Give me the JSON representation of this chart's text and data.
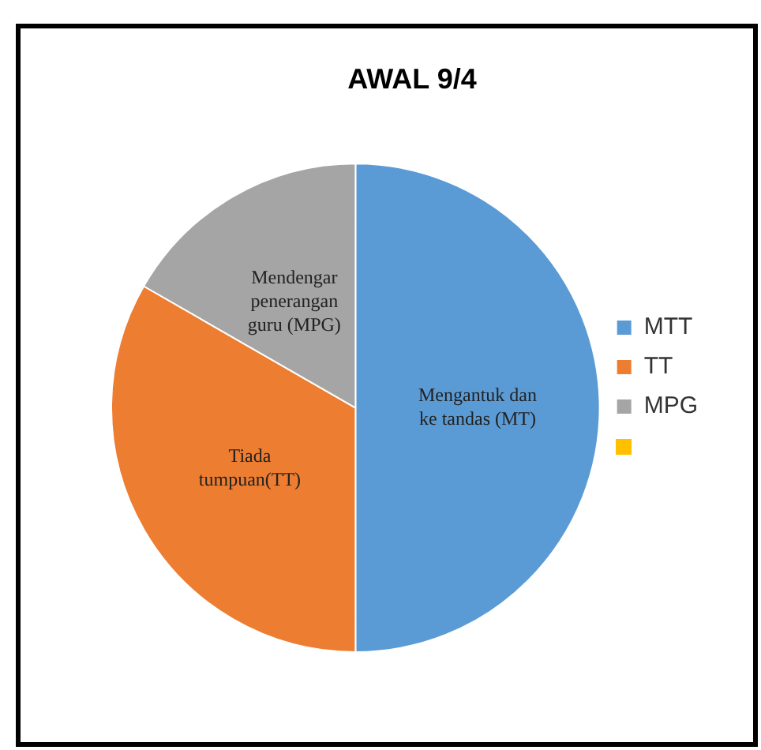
{
  "chart_data": {
    "type": "pie",
    "title": "AWAL 9/4",
    "categories": [
      "MTT",
      "TT",
      "MPG",
      null
    ],
    "values": [
      50,
      33.3,
      16.7,
      0
    ],
    "colors": [
      "#5b9bd5",
      "#ed7d31",
      "#a5a5a5",
      "#ffc000"
    ],
    "annotations": [
      "Mengantuk dan ke tandas (MT)",
      "Tiada tumpuan(TT)",
      "Mendengar penerangan guru (MPG)"
    ],
    "legend": "right"
  }
}
